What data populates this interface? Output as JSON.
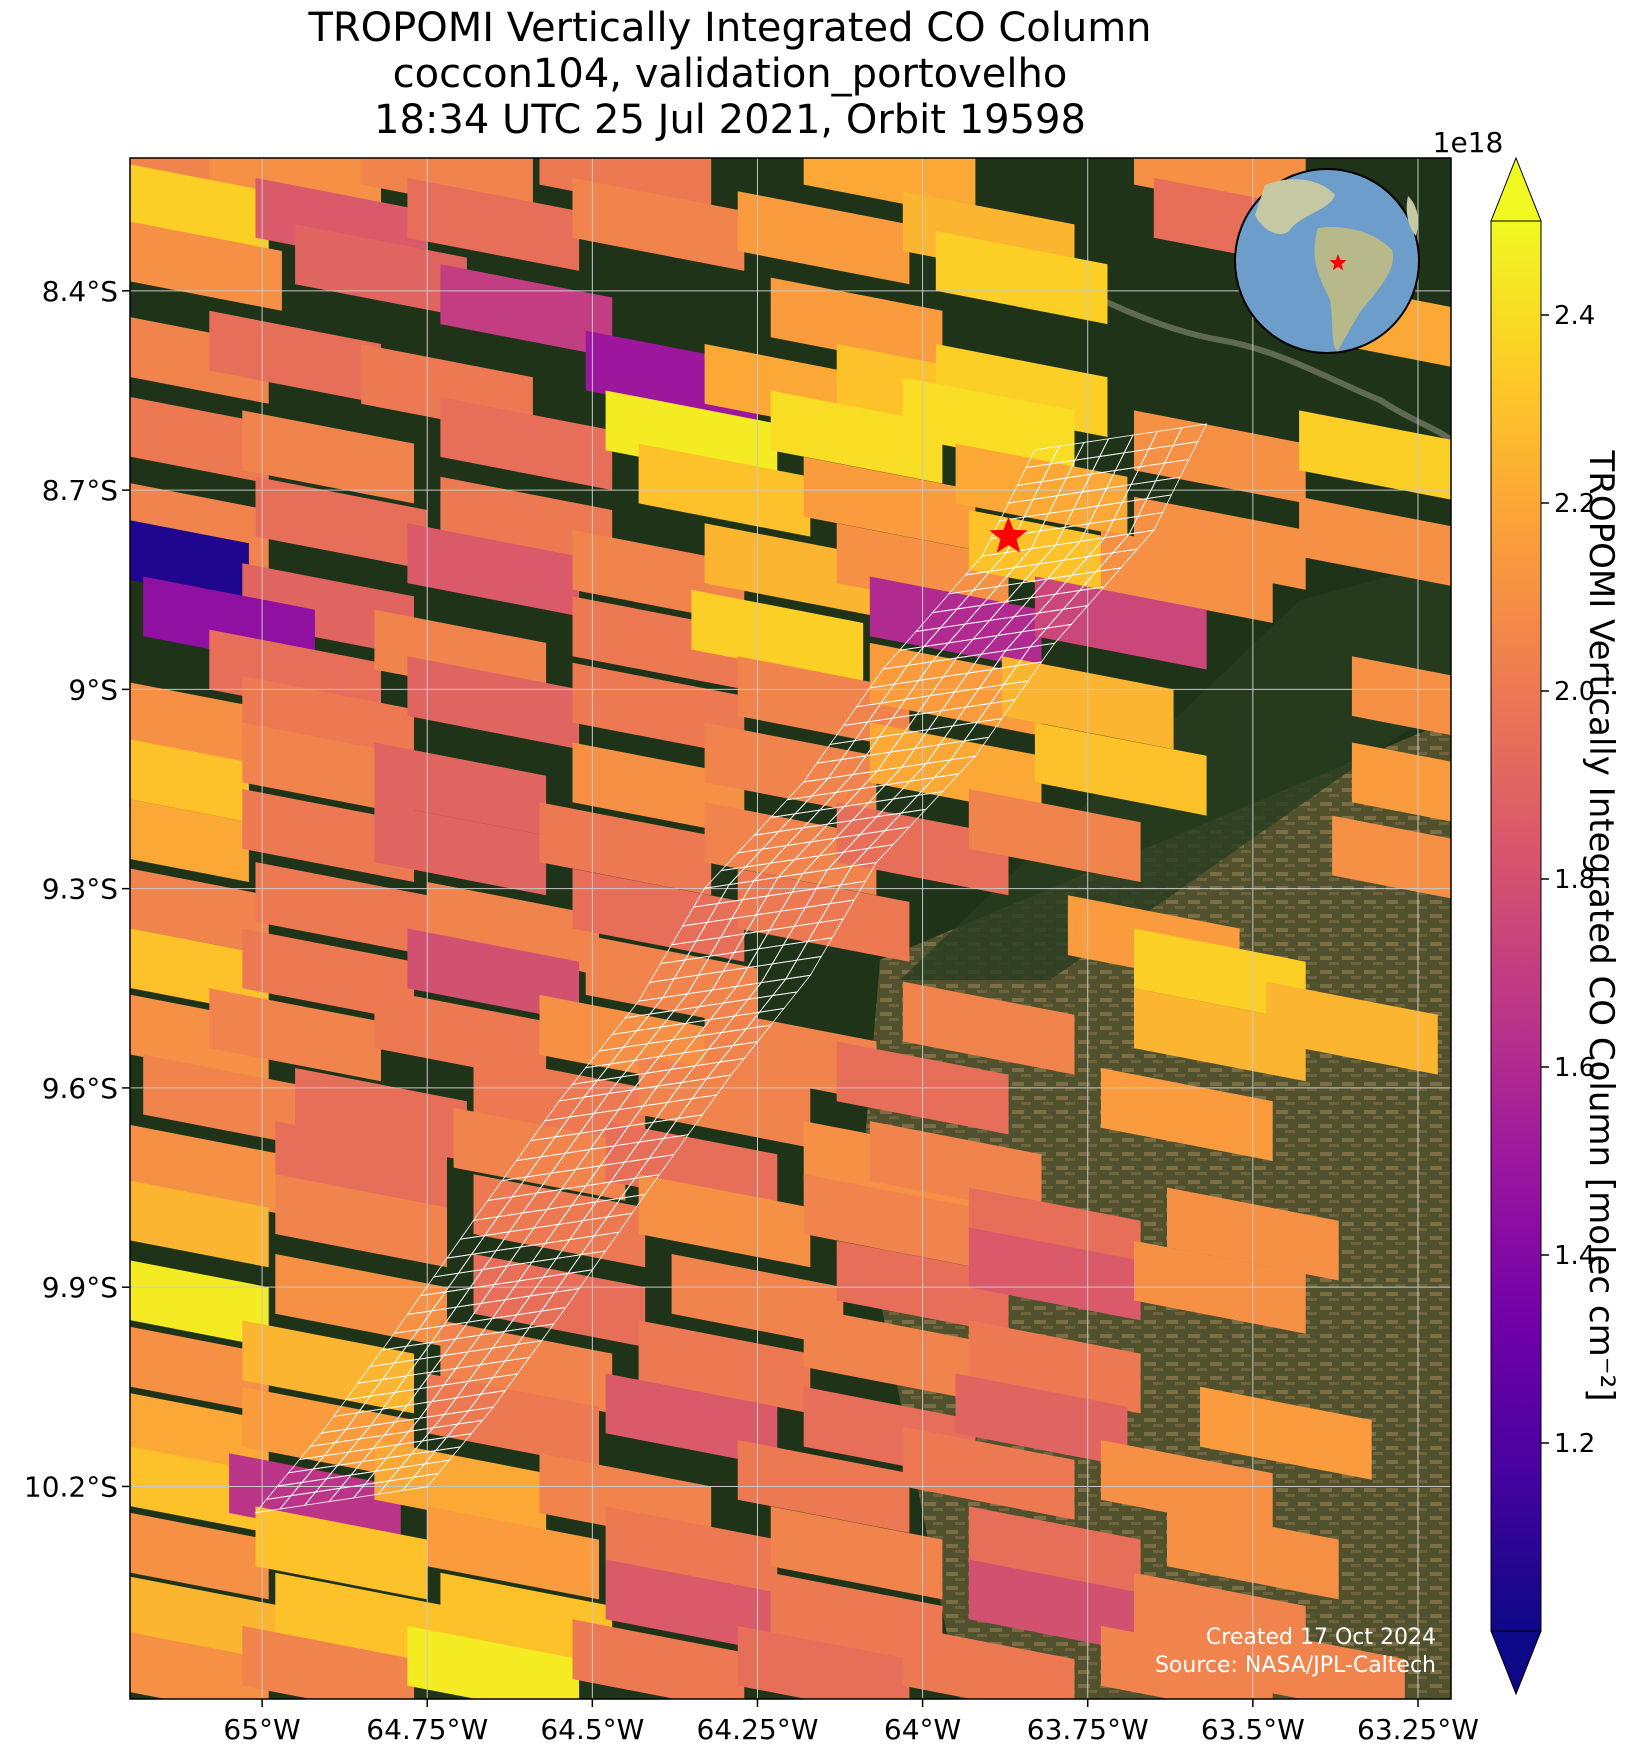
{
  "title_lines": [
    "TROPOMI Vertically Integrated CO Column",
    "coccon104, validation_portovelho",
    "18:34 UTC 25 Jul 2021, Orbit 19598"
  ],
  "credit": {
    "created": "Created 17 Oct 2024",
    "source": "Source: NASA/JPL-Caltech"
  },
  "colors": {
    "cmap": "plasma",
    "footprint_outline": "#ffffff",
    "site_marker": "#ff0000",
    "grid": "#c8c8c8"
  },
  "chart_data": {
    "type": "heatmap",
    "projection": "map",
    "xlim": [
      -65.2,
      -63.2
    ],
    "ylim": [
      -10.52,
      -8.2
    ],
    "x_ticks": [
      -65.0,
      -64.75,
      -64.5,
      -64.25,
      -64.0,
      -63.75,
      -63.5,
      -63.25
    ],
    "x_tick_labels": [
      "65°W",
      "64.75°W",
      "64.5°W",
      "64.25°W",
      "64°W",
      "63.75°W",
      "63.5°W",
      "63.25°W"
    ],
    "y_ticks": [
      -8.4,
      -8.7,
      -9.0,
      -9.3,
      -9.6,
      -9.9,
      -10.2
    ],
    "y_tick_labels": [
      "8.4°S",
      "8.7°S",
      "9°S",
      "9.3°S",
      "9.6°S",
      "9.9°S",
      "10.2°S"
    ],
    "grid": true,
    "site": {
      "name": "coccon104",
      "lon": -63.87,
      "lat": -8.77,
      "marker": "star"
    },
    "colorbar": {
      "label": "TROPOMI Vertically Integrated CO Column [molec cm⁻²]",
      "offset_label": "1e18",
      "vmin": 1.0,
      "vmax": 2.5,
      "ticks": [
        1.2,
        1.4,
        1.6,
        1.8,
        2.0,
        2.2,
        2.4
      ],
      "tick_labels": [
        "1.2",
        "1.4",
        "1.6",
        "1.8",
        "2.0",
        "2.2",
        "2.4"
      ],
      "extend": "both"
    },
    "pixels": [
      {
        "lon": -65.15,
        "lat": -8.22,
        "v": 2.05
      },
      {
        "lon": -64.95,
        "lat": -8.22,
        "v": 2.1
      },
      {
        "lon": -64.72,
        "lat": -8.22,
        "v": 2.05
      },
      {
        "lon": -64.45,
        "lat": -8.22,
        "v": 2.0
      },
      {
        "lon": -64.05,
        "lat": -8.22,
        "v": 2.2
      },
      {
        "lon": -63.55,
        "lat": -8.22,
        "v": 2.1
      },
      {
        "lon": -65.12,
        "lat": -8.27,
        "v": 2.35
      },
      {
        "lon": -64.88,
        "lat": -8.3,
        "v": 1.85
      },
      {
        "lon": -64.65,
        "lat": -8.3,
        "v": 1.95
      },
      {
        "lon": -64.4,
        "lat": -8.3,
        "v": 2.05
      },
      {
        "lon": -64.15,
        "lat": -8.32,
        "v": 2.15
      },
      {
        "lon": -63.9,
        "lat": -8.32,
        "v": 2.25
      },
      {
        "lon": -63.85,
        "lat": -8.38,
        "v": 2.35
      },
      {
        "lon": -65.1,
        "lat": -8.36,
        "v": 2.1
      },
      {
        "lon": -64.82,
        "lat": -8.37,
        "v": 1.9
      },
      {
        "lon": -64.6,
        "lat": -8.43,
        "v": 1.7
      },
      {
        "lon": -64.1,
        "lat": -8.45,
        "v": 2.15
      },
      {
        "lon": -63.3,
        "lat": -8.45,
        "v": 2.2
      },
      {
        "lon": -63.52,
        "lat": -8.3,
        "v": 1.95
      },
      {
        "lon": -65.12,
        "lat": -8.5,
        "v": 2.05
      },
      {
        "lon": -64.95,
        "lat": -8.5,
        "v": 1.95
      },
      {
        "lon": -64.72,
        "lat": -8.55,
        "v": 2.0
      },
      {
        "lon": -64.38,
        "lat": -8.53,
        "v": 1.5
      },
      {
        "lon": -64.2,
        "lat": -8.55,
        "v": 2.2
      },
      {
        "lon": -64.0,
        "lat": -8.55,
        "v": 2.3
      },
      {
        "lon": -63.85,
        "lat": -8.55,
        "v": 2.35
      },
      {
        "lon": -65.12,
        "lat": -8.62,
        "v": 2.0
      },
      {
        "lon": -64.9,
        "lat": -8.65,
        "v": 2.05
      },
      {
        "lon": -64.6,
        "lat": -8.63,
        "v": 1.95
      },
      {
        "lon": -64.35,
        "lat": -8.62,
        "v": 2.45
      },
      {
        "lon": -64.1,
        "lat": -8.62,
        "v": 2.4
      },
      {
        "lon": -63.9,
        "lat": -8.6,
        "v": 2.4
      },
      {
        "lon": -63.55,
        "lat": -8.65,
        "v": 2.1
      },
      {
        "lon": -63.3,
        "lat": -8.65,
        "v": 2.35
      },
      {
        "lon": -65.12,
        "lat": -8.75,
        "v": 2.05
      },
      {
        "lon": -64.88,
        "lat": -8.75,
        "v": 1.95
      },
      {
        "lon": -64.6,
        "lat": -8.75,
        "v": 2.0
      },
      {
        "lon": -64.3,
        "lat": -8.7,
        "v": 2.3
      },
      {
        "lon": -64.05,
        "lat": -8.72,
        "v": 2.15
      },
      {
        "lon": -63.82,
        "lat": -8.7,
        "v": 2.2
      },
      {
        "lon": -63.55,
        "lat": -8.78,
        "v": 2.1
      },
      {
        "lon": -63.3,
        "lat": -8.78,
        "v": 2.1
      },
      {
        "lon": -65.15,
        "lat": -8.8,
        "v": 1.05
      },
      {
        "lon": -64.9,
        "lat": -8.88,
        "v": 1.9
      },
      {
        "lon": -64.65,
        "lat": -8.82,
        "v": 1.85
      },
      {
        "lon": -64.4,
        "lat": -8.83,
        "v": 2.05
      },
      {
        "lon": -64.2,
        "lat": -8.82,
        "v": 2.25
      },
      {
        "lon": -64.0,
        "lat": -8.82,
        "v": 2.1
      },
      {
        "lon": -63.8,
        "lat": -8.8,
        "v": 2.3
      },
      {
        "lon": -63.6,
        "lat": -8.83,
        "v": 2.1
      },
      {
        "lon": -65.05,
        "lat": -8.9,
        "v": 1.45
      },
      {
        "lon": -64.95,
        "lat": -8.98,
        "v": 1.95
      },
      {
        "lon": -64.7,
        "lat": -8.95,
        "v": 2.05
      },
      {
        "lon": -64.4,
        "lat": -8.93,
        "v": 2.0
      },
      {
        "lon": -64.22,
        "lat": -8.92,
        "v": 2.35
      },
      {
        "lon": -63.95,
        "lat": -8.9,
        "v": 1.6
      },
      {
        "lon": -63.7,
        "lat": -8.9,
        "v": 1.75
      },
      {
        "lon": -65.12,
        "lat": -9.05,
        "v": 2.1
      },
      {
        "lon": -64.9,
        "lat": -9.05,
        "v": 2.0
      },
      {
        "lon": -64.65,
        "lat": -9.02,
        "v": 1.9
      },
      {
        "lon": -64.4,
        "lat": -9.03,
        "v": 2.0
      },
      {
        "lon": -64.15,
        "lat": -9.02,
        "v": 2.05
      },
      {
        "lon": -63.95,
        "lat": -9.0,
        "v": 2.15
      },
      {
        "lon": -63.75,
        "lat": -9.02,
        "v": 2.25
      },
      {
        "lon": -63.22,
        "lat": -9.02,
        "v": 2.1
      },
      {
        "lon": -65.15,
        "lat": -9.13,
        "v": 2.3
      },
      {
        "lon": -64.9,
        "lat": -9.12,
        "v": 2.05
      },
      {
        "lon": -64.7,
        "lat": -9.15,
        "v": 1.9
      },
      {
        "lon": -64.4,
        "lat": -9.15,
        "v": 2.1
      },
      {
        "lon": -64.2,
        "lat": -9.12,
        "v": 2.05
      },
      {
        "lon": -63.95,
        "lat": -9.12,
        "v": 2.2
      },
      {
        "lon": -63.7,
        "lat": -9.12,
        "v": 2.3
      },
      {
        "lon": -63.22,
        "lat": -9.15,
        "v": 2.15
      },
      {
        "lon": -65.15,
        "lat": -9.22,
        "v": 2.2
      },
      {
        "lon": -64.9,
        "lat": -9.22,
        "v": 2.0
      },
      {
        "lon": -64.7,
        "lat": -9.24,
        "v": 1.9
      },
      {
        "lon": -64.45,
        "lat": -9.24,
        "v": 2.0
      },
      {
        "lon": -64.2,
        "lat": -9.24,
        "v": 2.05
      },
      {
        "lon": -64.0,
        "lat": -9.24,
        "v": 1.95
      },
      {
        "lon": -63.8,
        "lat": -9.22,
        "v": 2.05
      },
      {
        "lon": -63.25,
        "lat": -9.26,
        "v": 2.1
      },
      {
        "lon": -65.12,
        "lat": -9.33,
        "v": 2.05
      },
      {
        "lon": -64.88,
        "lat": -9.33,
        "v": 2.0
      },
      {
        "lon": -64.62,
        "lat": -9.36,
        "v": 2.05
      },
      {
        "lon": -64.4,
        "lat": -9.34,
        "v": 1.95
      },
      {
        "lon": -64.15,
        "lat": -9.34,
        "v": 2.0
      },
      {
        "lon": -65.12,
        "lat": -9.42,
        "v": 2.3
      },
      {
        "lon": -64.9,
        "lat": -9.43,
        "v": 2.0
      },
      {
        "lon": -64.65,
        "lat": -9.43,
        "v": 1.8
      },
      {
        "lon": -64.38,
        "lat": -9.44,
        "v": 2.05
      },
      {
        "lon": -63.65,
        "lat": -9.38,
        "v": 2.15
      },
      {
        "lon": -63.55,
        "lat": -9.43,
        "v": 2.35
      },
      {
        "lon": -65.12,
        "lat": -9.52,
        "v": 2.1
      },
      {
        "lon": -64.95,
        "lat": -9.52,
        "v": 2.05
      },
      {
        "lon": -64.7,
        "lat": -9.52,
        "v": 2.0
      },
      {
        "lon": -64.45,
        "lat": -9.53,
        "v": 2.1
      },
      {
        "lon": -64.2,
        "lat": -9.55,
        "v": 2.05
      },
      {
        "lon": -63.9,
        "lat": -9.51,
        "v": 2.05
      },
      {
        "lon": -63.55,
        "lat": -9.52,
        "v": 2.25
      },
      {
        "lon": -63.35,
        "lat": -9.51,
        "v": 2.25
      },
      {
        "lon": -65.05,
        "lat": -9.62,
        "v": 2.05
      },
      {
        "lon": -64.82,
        "lat": -9.64,
        "v": 1.95
      },
      {
        "lon": -64.55,
        "lat": -9.62,
        "v": 2.0
      },
      {
        "lon": -64.3,
        "lat": -9.62,
        "v": 2.05
      },
      {
        "lon": -64.0,
        "lat": -9.6,
        "v": 1.95
      },
      {
        "lon": -63.6,
        "lat": -9.64,
        "v": 2.15
      },
      {
        "lon": -65.1,
        "lat": -9.72,
        "v": 2.1
      },
      {
        "lon": -64.85,
        "lat": -9.72,
        "v": 1.95
      },
      {
        "lon": -64.58,
        "lat": -9.7,
        "v": 2.05
      },
      {
        "lon": -64.35,
        "lat": -9.72,
        "v": 1.95
      },
      {
        "lon": -64.05,
        "lat": -9.72,
        "v": 2.1
      },
      {
        "lon": -63.95,
        "lat": -9.72,
        "v": 2.05
      },
      {
        "lon": -65.12,
        "lat": -9.8,
        "v": 2.25
      },
      {
        "lon": -64.85,
        "lat": -9.8,
        "v": 2.05
      },
      {
        "lon": -64.55,
        "lat": -9.8,
        "v": 2.0
      },
      {
        "lon": -64.3,
        "lat": -9.8,
        "v": 2.1
      },
      {
        "lon": -64.05,
        "lat": -9.8,
        "v": 2.05
      },
      {
        "lon": -63.8,
        "lat": -9.82,
        "v": 1.95
      },
      {
        "lon": -63.5,
        "lat": -9.82,
        "v": 2.1
      },
      {
        "lon": -65.12,
        "lat": -9.92,
        "v": 2.45
      },
      {
        "lon": -64.85,
        "lat": -9.92,
        "v": 2.1
      },
      {
        "lon": -64.55,
        "lat": -9.92,
        "v": 1.95
      },
      {
        "lon": -64.25,
        "lat": -9.92,
        "v": 2.05
      },
      {
        "lon": -64.0,
        "lat": -9.9,
        "v": 1.95
      },
      {
        "lon": -63.8,
        "lat": -9.88,
        "v": 1.85
      },
      {
        "lon": -63.55,
        "lat": -9.9,
        "v": 2.1
      },
      {
        "lon": -65.12,
        "lat": -10.02,
        "v": 2.1
      },
      {
        "lon": -64.9,
        "lat": -10.02,
        "v": 2.25
      },
      {
        "lon": -64.6,
        "lat": -10.02,
        "v": 2.05
      },
      {
        "lon": -64.3,
        "lat": -10.02,
        "v": 2.0
      },
      {
        "lon": -64.05,
        "lat": -10.0,
        "v": 2.05
      },
      {
        "lon": -63.8,
        "lat": -10.02,
        "v": 2.0
      },
      {
        "lon": -65.12,
        "lat": -10.12,
        "v": 2.2
      },
      {
        "lon": -64.9,
        "lat": -10.12,
        "v": 2.15
      },
      {
        "lon": -64.62,
        "lat": -10.1,
        "v": 2.0
      },
      {
        "lon": -64.35,
        "lat": -10.1,
        "v": 1.85
      },
      {
        "lon": -64.05,
        "lat": -10.12,
        "v": 1.95
      },
      {
        "lon": -63.82,
        "lat": -10.1,
        "v": 1.9
      },
      {
        "lon": -63.45,
        "lat": -10.12,
        "v": 2.15
      },
      {
        "lon": -65.12,
        "lat": -10.2,
        "v": 2.3
      },
      {
        "lon": -64.92,
        "lat": -10.22,
        "v": 1.65
      },
      {
        "lon": -64.7,
        "lat": -10.2,
        "v": 2.2
      },
      {
        "lon": -64.45,
        "lat": -10.22,
        "v": 2.05
      },
      {
        "lon": -64.15,
        "lat": -10.2,
        "v": 2.0
      },
      {
        "lon": -63.9,
        "lat": -10.18,
        "v": 2.0
      },
      {
        "lon": -63.6,
        "lat": -10.2,
        "v": 2.1
      },
      {
        "lon": -65.12,
        "lat": -10.3,
        "v": 2.1
      },
      {
        "lon": -64.88,
        "lat": -10.3,
        "v": 2.3
      },
      {
        "lon": -64.62,
        "lat": -10.3,
        "v": 2.15
      },
      {
        "lon": -64.35,
        "lat": -10.3,
        "v": 2.0
      },
      {
        "lon": -64.1,
        "lat": -10.3,
        "v": 2.05
      },
      {
        "lon": -63.8,
        "lat": -10.3,
        "v": 1.95
      },
      {
        "lon": -63.5,
        "lat": -10.3,
        "v": 2.1
      },
      {
        "lon": -65.1,
        "lat": -10.4,
        "v": 2.25
      },
      {
        "lon": -64.85,
        "lat": -10.4,
        "v": 2.3
      },
      {
        "lon": -64.6,
        "lat": -10.4,
        "v": 2.3
      },
      {
        "lon": -64.35,
        "lat": -10.38,
        "v": 1.85
      },
      {
        "lon": -64.1,
        "lat": -10.4,
        "v": 2.0
      },
      {
        "lon": -63.8,
        "lat": -10.38,
        "v": 1.8
      },
      {
        "lon": -63.55,
        "lat": -10.4,
        "v": 2.05
      },
      {
        "lon": -65.12,
        "lat": -10.48,
        "v": 2.1
      },
      {
        "lon": -64.9,
        "lat": -10.48,
        "v": 2.05
      },
      {
        "lon": -64.65,
        "lat": -10.48,
        "v": 2.45
      },
      {
        "lon": -64.4,
        "lat": -10.47,
        "v": 2.0
      },
      {
        "lon": -64.15,
        "lat": -10.48,
        "v": 1.95
      },
      {
        "lon": -63.9,
        "lat": -10.48,
        "v": 2.0
      },
      {
        "lon": -63.6,
        "lat": -10.48,
        "v": 2.05
      },
      {
        "lon": -63.4,
        "lat": -10.48,
        "v": 2.05
      }
    ],
    "footprint_swath": [
      {
        "lon": -63.7,
        "lat": -8.62
      },
      {
        "lon": -63.78,
        "lat": -8.78
      },
      {
        "lon": -63.93,
        "lat": -8.95
      },
      {
        "lon": -64.05,
        "lat": -9.12
      },
      {
        "lon": -64.2,
        "lat": -9.28
      },
      {
        "lon": -64.3,
        "lat": -9.45
      },
      {
        "lon": -64.42,
        "lat": -9.6
      },
      {
        "lon": -64.55,
        "lat": -9.78
      },
      {
        "lon": -64.67,
        "lat": -9.95
      },
      {
        "lon": -64.78,
        "lat": -10.1
      },
      {
        "lon": -64.88,
        "lat": -10.22
      }
    ]
  }
}
